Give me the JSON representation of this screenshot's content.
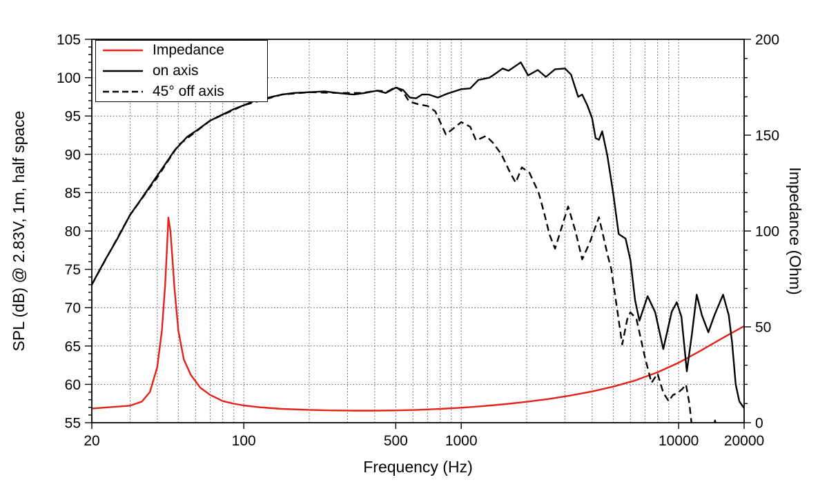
{
  "chart_data": {
    "type": "line",
    "title": "",
    "xlabel": "Frequency (Hz)",
    "ylabel_left": "SPL (dB) @ 2.83V, 1m, half space",
    "ylabel_right": "Impedance (Ohm)",
    "x_scale": "log",
    "xlim": [
      20,
      20000
    ],
    "ylim_left": [
      55,
      105
    ],
    "ylim_right": [
      0,
      200
    ],
    "grid": "dotted",
    "legend_position": "top-left",
    "x_major_ticks": [
      20,
      100,
      500,
      1000,
      10000,
      20000
    ],
    "x_tick_labels": [
      "20",
      "100",
      "500",
      "1000",
      "10000",
      "20000"
    ],
    "x_gridlines": [
      30,
      40,
      50,
      60,
      70,
      80,
      90,
      100,
      200,
      300,
      400,
      500,
      600,
      700,
      800,
      900,
      1000,
      2000,
      3000,
      4000,
      5000,
      6000,
      7000,
      8000,
      9000,
      10000
    ],
    "y_left_major_ticks": [
      55,
      60,
      65,
      70,
      75,
      80,
      85,
      90,
      95,
      100,
      105
    ],
    "y_left_minor_step": 1,
    "y_right_major_ticks": [
      0,
      50,
      100,
      150,
      200
    ],
    "y_right_minor_step": 10,
    "y_gridlines_dB": [
      60,
      65,
      70,
      75,
      80,
      85,
      90,
      95,
      100
    ],
    "series": [
      {
        "name": "Impedance",
        "axis": "right",
        "unit": "Ohm",
        "color": "#e32119",
        "style": "solid",
        "points": [
          [
            20,
            7.4
          ],
          [
            25,
            8.2
          ],
          [
            30,
            8.9
          ],
          [
            34,
            11
          ],
          [
            37,
            16
          ],
          [
            40,
            29
          ],
          [
            42,
            48
          ],
          [
            43.5,
            72
          ],
          [
            44.5,
            95
          ],
          [
            45,
            107
          ],
          [
            46,
            100
          ],
          [
            47,
            85
          ],
          [
            48,
            70
          ],
          [
            50,
            48
          ],
          [
            53,
            33
          ],
          [
            57,
            25
          ],
          [
            63,
            18.3
          ],
          [
            70,
            14.5
          ],
          [
            80,
            11.3
          ],
          [
            90,
            9.9
          ],
          [
            100,
            9.0
          ],
          [
            120,
            8.0
          ],
          [
            150,
            7.2
          ],
          [
            200,
            6.7
          ],
          [
            250,
            6.4
          ],
          [
            320,
            6.3
          ],
          [
            400,
            6.3
          ],
          [
            500,
            6.4
          ],
          [
            630,
            6.7
          ],
          [
            800,
            7.2
          ],
          [
            1000,
            7.8
          ],
          [
            1250,
            8.6
          ],
          [
            1600,
            9.7
          ],
          [
            2000,
            10.9
          ],
          [
            2500,
            12.3
          ],
          [
            3150,
            14.1
          ],
          [
            4000,
            16.3
          ],
          [
            5000,
            18.8
          ],
          [
            6300,
            22
          ],
          [
            8000,
            26.3
          ],
          [
            10000,
            31.3
          ],
          [
            12500,
            37.3
          ],
          [
            16000,
            44.3
          ],
          [
            20000,
            50.4
          ]
        ]
      },
      {
        "name": "on axis",
        "axis": "left",
        "unit": "dB",
        "color": "#000000",
        "style": "solid",
        "points": [
          [
            20,
            73
          ],
          [
            23,
            76.2
          ],
          [
            26,
            78.8
          ],
          [
            30,
            82.1
          ],
          [
            34,
            84.3
          ],
          [
            38,
            86.3
          ],
          [
            43,
            88.5
          ],
          [
            48,
            90.5
          ],
          [
            55,
            92.3
          ],
          [
            62,
            93.3
          ],
          [
            70,
            94.4
          ],
          [
            80,
            95.2
          ],
          [
            90,
            95.9
          ],
          [
            100,
            96.4
          ],
          [
            115,
            97.1
          ],
          [
            130,
            97.4
          ],
          [
            150,
            97.8
          ],
          [
            170,
            98.0
          ],
          [
            200,
            98.1
          ],
          [
            235,
            98.2
          ],
          [
            270,
            98.0
          ],
          [
            320,
            97.8
          ],
          [
            360,
            98.0
          ],
          [
            410,
            98.3
          ],
          [
            450,
            98.0
          ],
          [
            500,
            98.7
          ],
          [
            540,
            98.4
          ],
          [
            580,
            97.4
          ],
          [
            620,
            97.3
          ],
          [
            660,
            97.8
          ],
          [
            710,
            97.8
          ],
          [
            780,
            97.4
          ],
          [
            860,
            97.9
          ],
          [
            1000,
            98.5
          ],
          [
            1100,
            98.6
          ],
          [
            1200,
            99.7
          ],
          [
            1350,
            100.0
          ],
          [
            1450,
            100.6
          ],
          [
            1550,
            101.2
          ],
          [
            1650,
            100.9
          ],
          [
            1880,
            102.0
          ],
          [
            2030,
            100.3
          ],
          [
            2250,
            101.0
          ],
          [
            2450,
            100.1
          ],
          [
            2700,
            101.1
          ],
          [
            3000,
            101.2
          ],
          [
            3200,
            100.4
          ],
          [
            3300,
            99.2
          ],
          [
            3450,
            97.5
          ],
          [
            3600,
            97.8
          ],
          [
            3800,
            96.4
          ],
          [
            4000,
            94.7
          ],
          [
            4150,
            92.1
          ],
          [
            4300,
            91.9
          ],
          [
            4450,
            93.0
          ],
          [
            4700,
            89.8
          ],
          [
            5000,
            84.9
          ],
          [
            5300,
            79.6
          ],
          [
            5700,
            79.0
          ],
          [
            6000,
            76.2
          ],
          [
            6300,
            71.0
          ],
          [
            6600,
            68.3
          ],
          [
            7200,
            71.5
          ],
          [
            7800,
            69.4
          ],
          [
            8500,
            64.6
          ],
          [
            9300,
            69.5
          ],
          [
            9800,
            70.7
          ],
          [
            10300,
            68.8
          ],
          [
            10900,
            61.7
          ],
          [
            11500,
            66.5
          ],
          [
            12100,
            71.7
          ],
          [
            12800,
            69.0
          ],
          [
            13700,
            66.8
          ],
          [
            14600,
            69.0
          ],
          [
            16000,
            71.7
          ],
          [
            17000,
            69.0
          ],
          [
            17600,
            65.5
          ],
          [
            18300,
            60.0
          ],
          [
            19000,
            57.8
          ],
          [
            20000,
            56.9
          ]
        ]
      },
      {
        "name": "45° off axis",
        "axis": "left",
        "unit": "dB",
        "color": "#000000",
        "style": "dashed",
        "points": [
          [
            20,
            73
          ],
          [
            30,
            82.1
          ],
          [
            40,
            87
          ],
          [
            50,
            91.2
          ],
          [
            70,
            94.4
          ],
          [
            100,
            96.4
          ],
          [
            150,
            97.8
          ],
          [
            200,
            98.1
          ],
          [
            270,
            98.0
          ],
          [
            350,
            98.0
          ],
          [
            410,
            98.3
          ],
          [
            460,
            98.2
          ],
          [
            500,
            98.8
          ],
          [
            545,
            98.0
          ],
          [
            575,
            96.9
          ],
          [
            640,
            96.5
          ],
          [
            700,
            96.3
          ],
          [
            760,
            95.6
          ],
          [
            850,
            92.6
          ],
          [
            1000,
            94.2
          ],
          [
            1100,
            93.6
          ],
          [
            1170,
            91.8
          ],
          [
            1300,
            92.4
          ],
          [
            1400,
            91.5
          ],
          [
            1530,
            90.0
          ],
          [
            1680,
            87.6
          ],
          [
            1780,
            86.3
          ],
          [
            1900,
            88.3
          ],
          [
            2060,
            87.6
          ],
          [
            2270,
            85.0
          ],
          [
            2400,
            82.5
          ],
          [
            2550,
            79.5
          ],
          [
            2700,
            77.7
          ],
          [
            2900,
            80.5
          ],
          [
            3100,
            83.2
          ],
          [
            3350,
            80.0
          ],
          [
            3600,
            76.3
          ],
          [
            3900,
            78.5
          ],
          [
            4300,
            81.8
          ],
          [
            4700,
            77.0
          ],
          [
            4900,
            75.0
          ],
          [
            5200,
            70.0
          ],
          [
            5500,
            65.2
          ],
          [
            5800,
            68.5
          ],
          [
            6000,
            69.4
          ],
          [
            6400,
            68.5
          ],
          [
            7000,
            63.5
          ],
          [
            7500,
            60.2
          ],
          [
            8000,
            61.4
          ],
          [
            8500,
            58.9
          ],
          [
            9000,
            57.8
          ],
          [
            9400,
            58.6
          ],
          [
            9900,
            58.9
          ],
          [
            10400,
            59.4
          ],
          [
            10800,
            60.0
          ],
          [
            11200,
            57.5
          ],
          [
            11600,
            53.5
          ],
          [
            14200,
            53.8
          ],
          [
            14700,
            55.3
          ],
          [
            15100,
            53.5
          ]
        ]
      }
    ]
  },
  "legend": {
    "items": [
      {
        "label": "Impedance",
        "color": "#e32119",
        "dash": "solid"
      },
      {
        "label": "on axis",
        "color": "#000000",
        "dash": "solid"
      },
      {
        "label": "45° off axis",
        "color": "#000000",
        "dash": "dashed"
      }
    ]
  },
  "style": {
    "grid_color": "#555555",
    "axis_color": "#000000",
    "background": "#ffffff"
  }
}
